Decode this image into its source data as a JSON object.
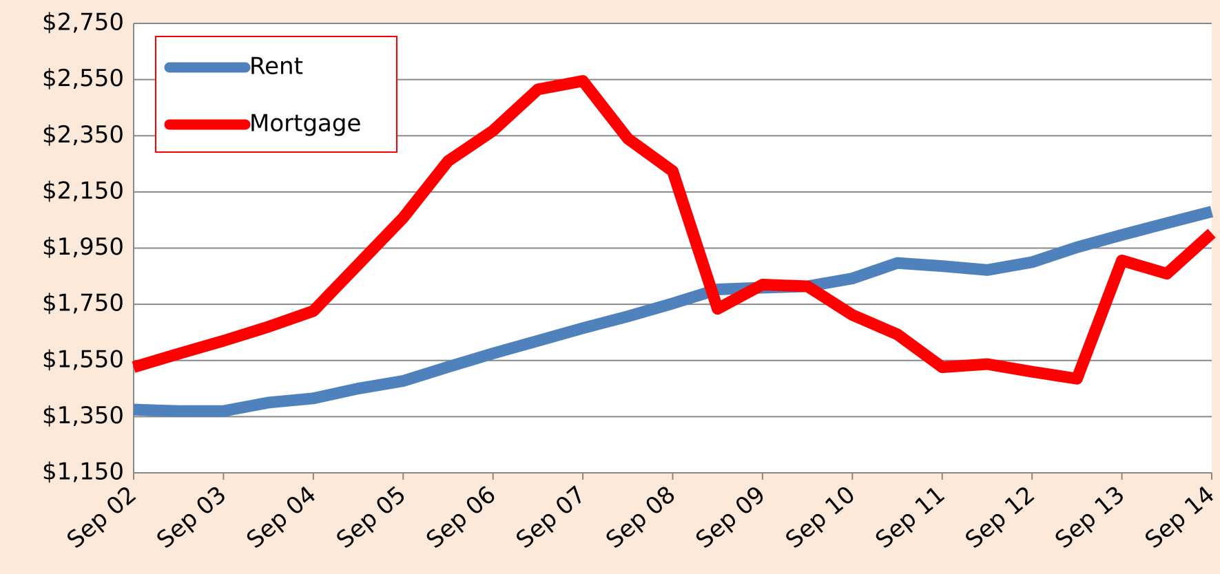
{
  "chart_data": {
    "type": "line",
    "categories": [
      "Sep 02",
      null,
      "Sep 03",
      null,
      "Sep 04",
      null,
      "Sep 05",
      null,
      "Sep 06",
      null,
      "Sep 07",
      null,
      "Sep 08",
      null,
      "Sep 09",
      null,
      "Sep 10",
      null,
      "Sep 11",
      null,
      "Sep 12",
      null,
      "Sep 13",
      null,
      "Sep 14"
    ],
    "series": [
      {
        "name": "Rent",
        "color": "#4f81bd",
        "values": [
          1375,
          1370,
          1370,
          1400,
          1415,
          1450,
          1477,
          1527,
          1575,
          1620,
          1665,
          1707,
          1753,
          1803,
          1809,
          1814,
          1842,
          1897,
          1886,
          1872,
          1900,
          1953,
          1997,
          2039,
          2080
        ]
      },
      {
        "name": "Mortgage",
        "color": "#ff0000",
        "values": [
          1526,
          1574,
          1620,
          1670,
          1726,
          1892,
          2058,
          2260,
          2368,
          2515,
          2545,
          2340,
          2224,
          1734,
          1820,
          1814,
          1712,
          1643,
          1526,
          1537,
          1510,
          1485,
          1906,
          1859,
          2003
        ]
      }
    ],
    "ylim": [
      1150,
      2750
    ],
    "yticks": [
      {
        "value": 1150,
        "label": "$1,150"
      },
      {
        "value": 1350,
        "label": "$1,350"
      },
      {
        "value": 1550,
        "label": "$1,550"
      },
      {
        "value": 1750,
        "label": "$1,750"
      },
      {
        "value": 1950,
        "label": "$1,950"
      },
      {
        "value": 2150,
        "label": "$2,150"
      },
      {
        "value": 2350,
        "label": "$2,350"
      },
      {
        "value": 2550,
        "label": "$2,550"
      },
      {
        "value": 2750,
        "label": "$2,750"
      }
    ],
    "grid": true,
    "legend": "top-left"
  }
}
